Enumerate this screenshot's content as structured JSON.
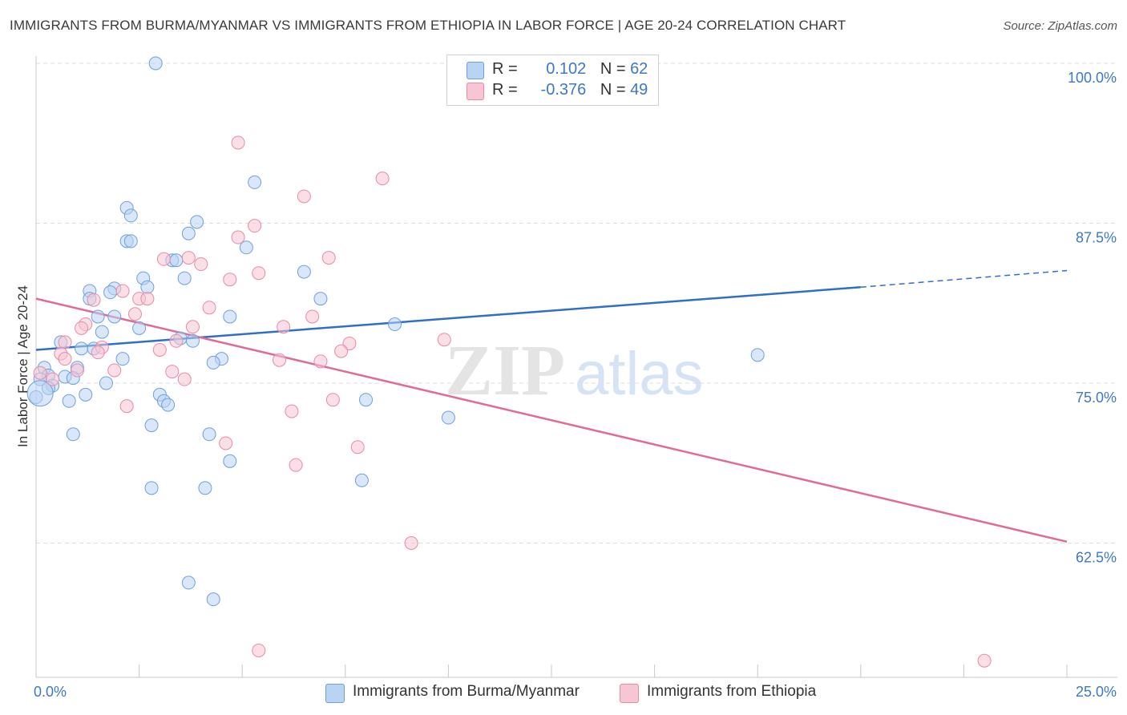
{
  "title": "IMMIGRANTS FROM BURMA/MYANMAR VS IMMIGRANTS FROM ETHIOPIA IN LABOR FORCE | AGE 20-24 CORRELATION CHART",
  "source": "Source: ZipAtlas.com",
  "legend_stats": {
    "blue": {
      "r_label": "R =",
      "r_value": "0.102",
      "n_label": "N =",
      "n_value": "62"
    },
    "pink": {
      "r_label": "R =",
      "r_value": "-0.376",
      "n_label": "N =",
      "n_value": "49"
    }
  },
  "colors": {
    "blue_fill": "#b9d3f3",
    "blue_stroke": "#6f9fdc",
    "blue_line": "#2f6fc9",
    "pink_fill": "#f8c5d4",
    "pink_stroke": "#e98aa7",
    "pink_line": "#e06b96",
    "tick_label": "#3d78c9",
    "grid": "#dcdcdc"
  },
  "chart_data": {
    "type": "scatter",
    "title": "IMMIGRANTS FROM BURMA/MYANMAR VS IMMIGRANTS FROM ETHIOPIA IN LABOR FORCE | AGE 20-24 CORRELATION CHART",
    "xlabel": "",
    "ylabel": "In Labor Force | Age 20-24",
    "xlim": [
      0,
      25
    ],
    "ylim": [
      52,
      100.5
    ],
    "x_tick_labels": [
      {
        "value": 0,
        "label": "0.0%"
      },
      {
        "value": 25,
        "label": "25.0%"
      }
    ],
    "y_tick_labels": [
      {
        "value": 100,
        "label": "100.0%"
      },
      {
        "value": 87.5,
        "label": "87.5%"
      },
      {
        "value": 75,
        "label": "75.0%"
      },
      {
        "value": 62.5,
        "label": "62.5%"
      }
    ],
    "grid": true,
    "legend_position": "bottom",
    "watermark": {
      "zip": "ZIP",
      "atlas": "atlas"
    },
    "series": [
      {
        "name": "Immigrants from Burma/Myanmar",
        "color": "#b9d3f3",
        "trend": {
          "x": [
            0,
            20
          ],
          "y": [
            77.6,
            82.5
          ],
          "dashed_to": [
            25,
            83.8
          ]
        },
        "points": [
          [
            2.9,
            100.0
          ],
          [
            5.3,
            90.7
          ],
          [
            2.2,
            88.7
          ],
          [
            2.3,
            88.1
          ],
          [
            3.9,
            87.6
          ],
          [
            3.7,
            86.7
          ],
          [
            2.2,
            86.1
          ],
          [
            2.3,
            86.1
          ],
          [
            5.1,
            85.6
          ],
          [
            3.3,
            84.6
          ],
          [
            3.4,
            84.6
          ],
          [
            6.5,
            83.7
          ],
          [
            2.6,
            83.2
          ],
          [
            3.6,
            83.2
          ],
          [
            2.7,
            82.5
          ],
          [
            1.9,
            82.4
          ],
          [
            1.3,
            82.2
          ],
          [
            1.8,
            82.1
          ],
          [
            1.3,
            81.6
          ],
          [
            6.9,
            81.6
          ],
          [
            1.5,
            80.2
          ],
          [
            1.9,
            80.2
          ],
          [
            4.7,
            80.2
          ],
          [
            8.7,
            79.6
          ],
          [
            2.5,
            79.3
          ],
          [
            1.6,
            79.0
          ],
          [
            3.5,
            78.5
          ],
          [
            3.8,
            78.3
          ],
          [
            0.6,
            78.2
          ],
          [
            1.1,
            77.7
          ],
          [
            1.4,
            77.7
          ],
          [
            17.5,
            77.2
          ],
          [
            2.1,
            76.9
          ],
          [
            4.5,
            76.9
          ],
          [
            4.3,
            76.6
          ],
          [
            0.2,
            76.2
          ],
          [
            1.0,
            76.2
          ],
          [
            0.3,
            75.6
          ],
          [
            0.7,
            75.5
          ],
          [
            0.9,
            75.4
          ],
          [
            0.1,
            75.3
          ],
          [
            1.7,
            75.0
          ],
          [
            0.4,
            74.8
          ],
          [
            0.3,
            74.6
          ],
          [
            1.2,
            74.1
          ],
          [
            3.0,
            74.1
          ],
          [
            8.0,
            73.7
          ],
          [
            0.8,
            73.6
          ],
          [
            3.1,
            73.6
          ],
          [
            3.2,
            73.3
          ],
          [
            0.0,
            73.9
          ],
          [
            10.0,
            72.3
          ],
          [
            2.8,
            71.7
          ],
          [
            4.2,
            71.0
          ],
          [
            0.9,
            71.0
          ],
          [
            4.7,
            68.9
          ],
          [
            7.9,
            67.4
          ],
          [
            2.8,
            66.8
          ],
          [
            4.1,
            66.8
          ],
          [
            3.7,
            59.4
          ],
          [
            4.3,
            58.1
          ],
          [
            0.1,
            74.2
          ]
        ]
      },
      {
        "name": "Immigrants from Ethiopia",
        "color": "#f8c5d4",
        "trend": {
          "x": [
            0,
            25
          ],
          "y": [
            81.6,
            62.6
          ]
        },
        "points": [
          [
            4.9,
            93.8
          ],
          [
            8.4,
            91.0
          ],
          [
            6.5,
            89.6
          ],
          [
            5.3,
            87.3
          ],
          [
            4.9,
            86.4
          ],
          [
            7.1,
            84.8
          ],
          [
            3.1,
            84.7
          ],
          [
            3.7,
            84.8
          ],
          [
            4.0,
            84.3
          ],
          [
            5.4,
            83.6
          ],
          [
            4.7,
            83.1
          ],
          [
            2.1,
            82.2
          ],
          [
            2.5,
            81.6
          ],
          [
            2.7,
            81.6
          ],
          [
            1.4,
            81.5
          ],
          [
            4.2,
            80.9
          ],
          [
            2.4,
            80.4
          ],
          [
            6.7,
            80.2
          ],
          [
            1.2,
            79.6
          ],
          [
            1.1,
            79.3
          ],
          [
            3.8,
            79.4
          ],
          [
            6.0,
            79.4
          ],
          [
            9.9,
            78.4
          ],
          [
            0.7,
            78.2
          ],
          [
            3.4,
            78.3
          ],
          [
            7.6,
            78.1
          ],
          [
            1.6,
            77.8
          ],
          [
            1.5,
            77.4
          ],
          [
            3.0,
            77.6
          ],
          [
            7.4,
            77.5
          ],
          [
            0.6,
            77.3
          ],
          [
            0.7,
            76.9
          ],
          [
            5.9,
            76.8
          ],
          [
            6.9,
            76.7
          ],
          [
            1.0,
            76.0
          ],
          [
            1.9,
            76.0
          ],
          [
            3.3,
            75.9
          ],
          [
            3.6,
            75.3
          ],
          [
            0.4,
            75.3
          ],
          [
            0.1,
            75.8
          ],
          [
            7.2,
            73.7
          ],
          [
            2.2,
            73.2
          ],
          [
            6.2,
            72.8
          ],
          [
            4.6,
            70.3
          ],
          [
            7.8,
            70.0
          ],
          [
            6.3,
            68.6
          ],
          [
            9.1,
            62.5
          ],
          [
            5.4,
            54.1
          ],
          [
            23.0,
            53.3
          ]
        ]
      }
    ]
  },
  "bottom_legend": {
    "blue_label": "Immigrants from Burma/Myanmar",
    "pink_label": "Immigrants from Ethiopia"
  }
}
